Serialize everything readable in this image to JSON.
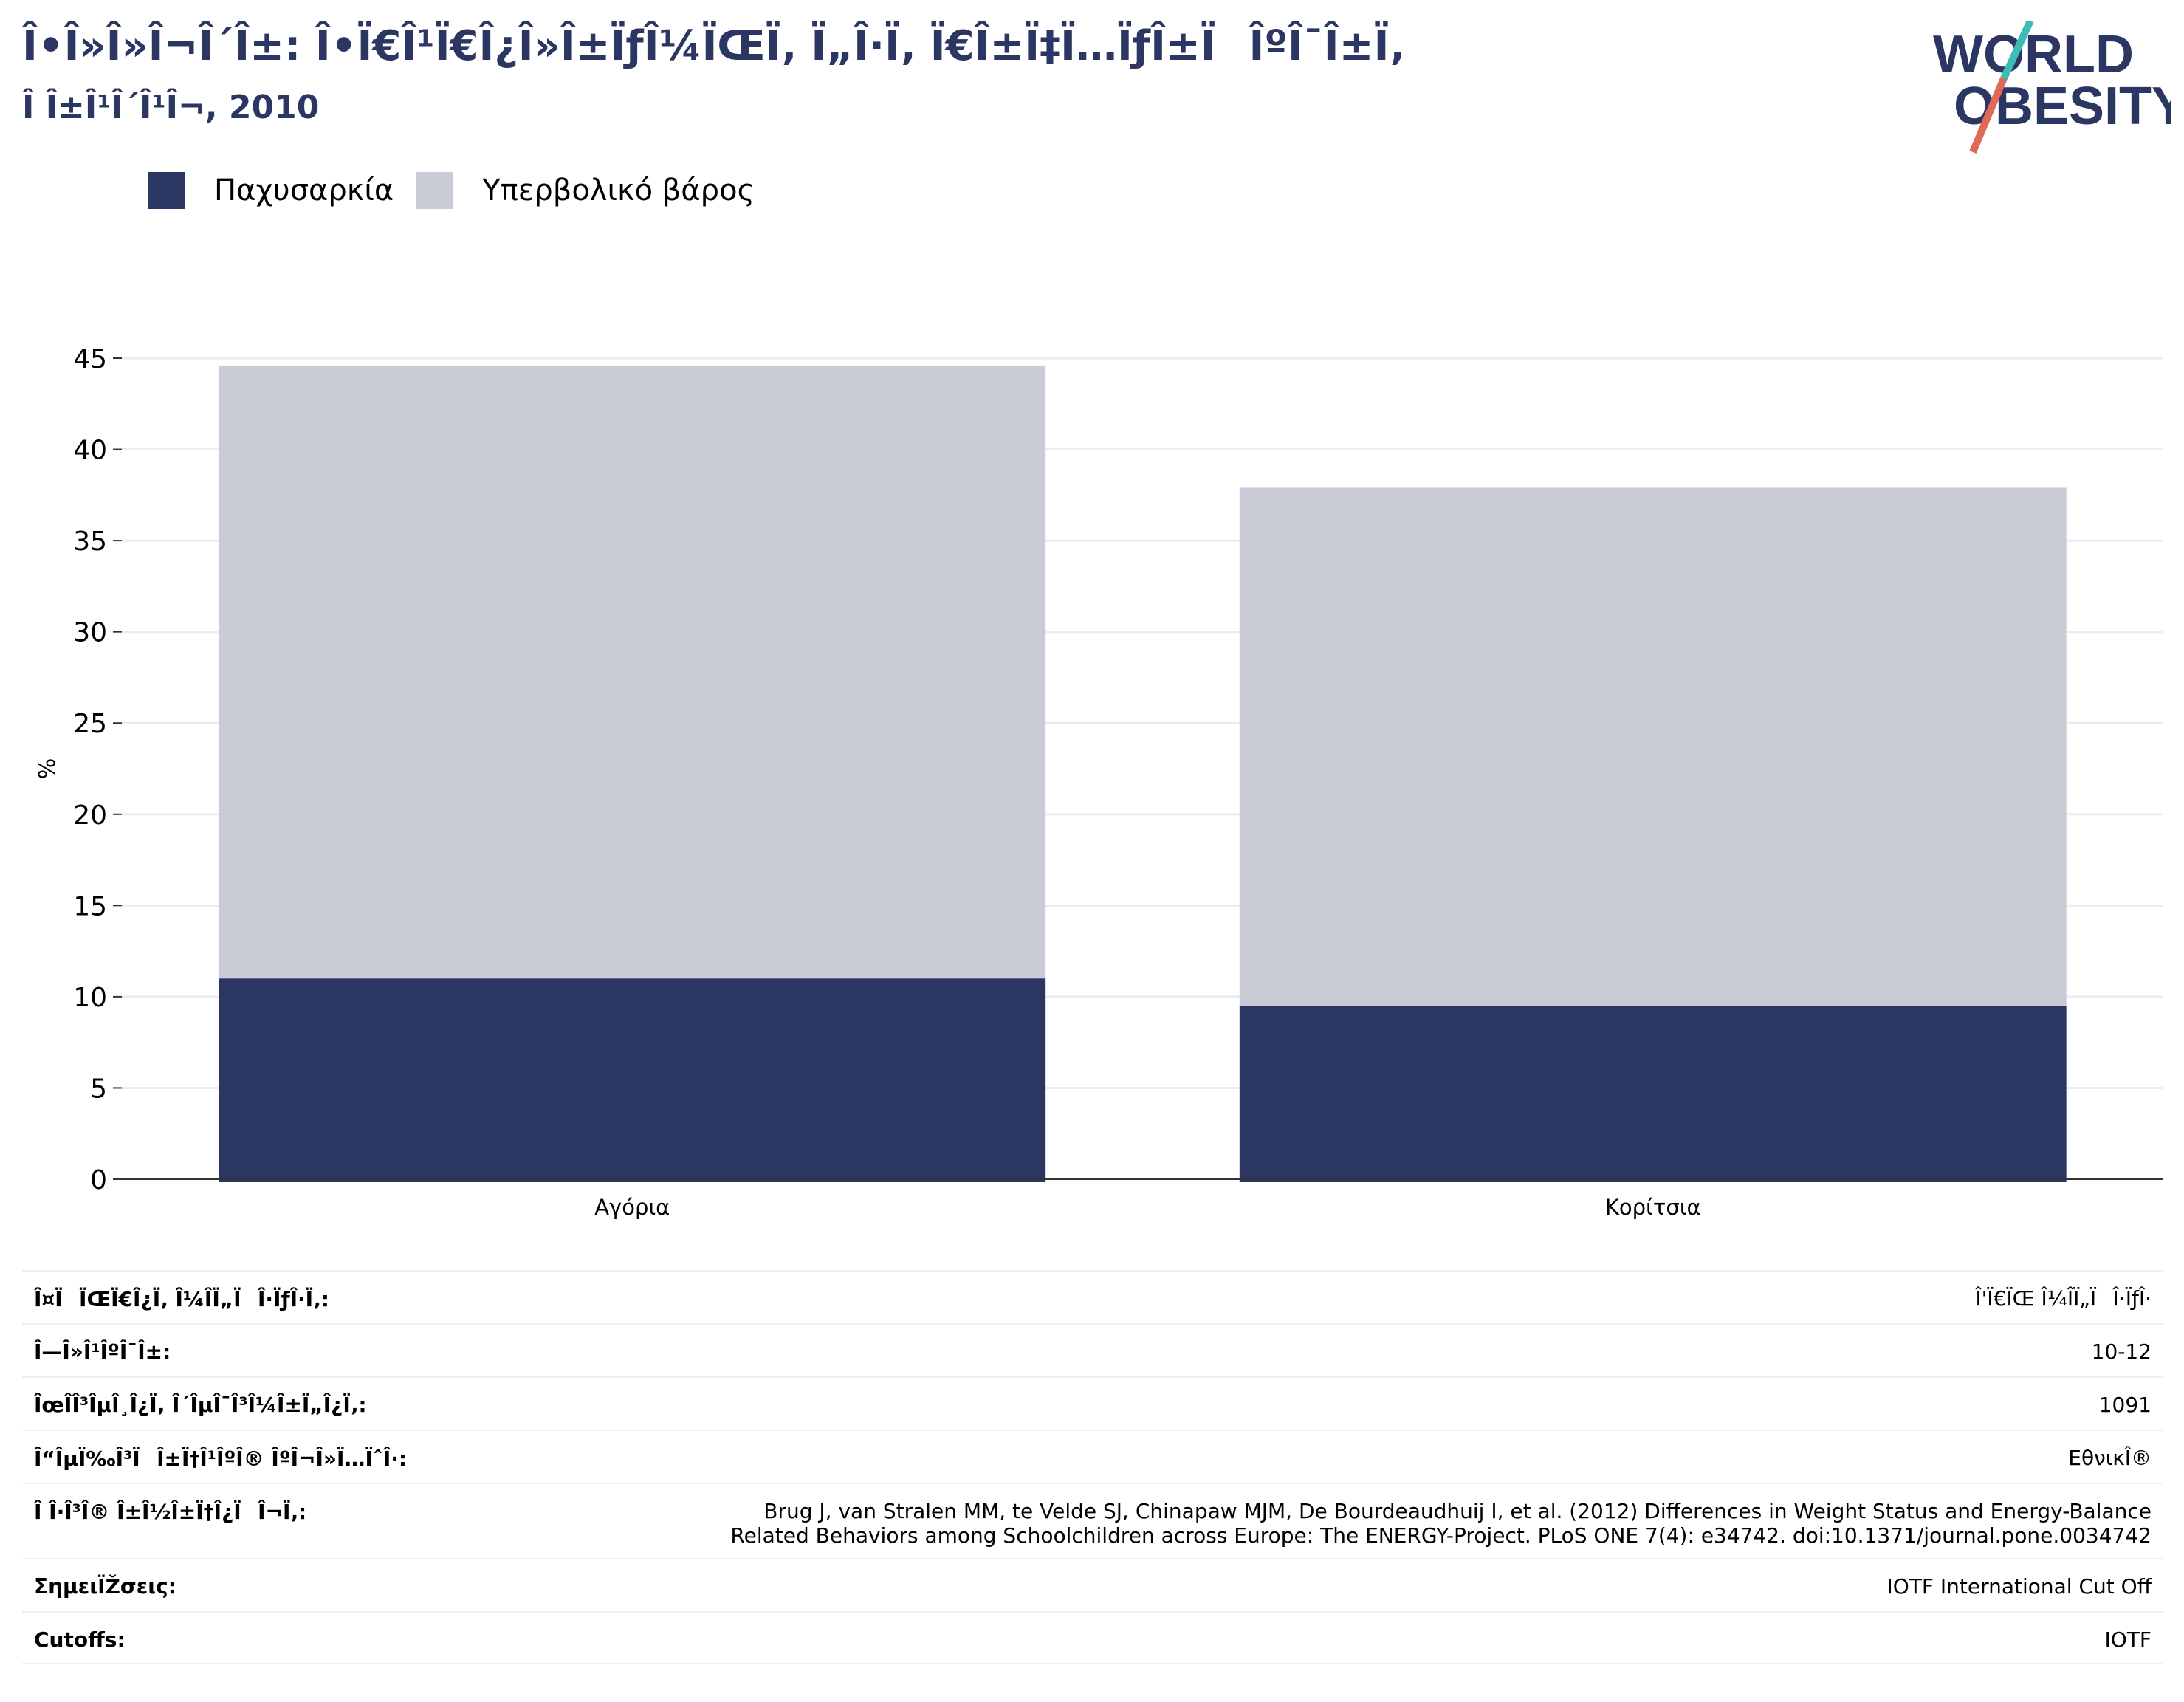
{
  "header": {
    "title": "Î•Î»Î»Î¬Î´Î±: Î•Ï€Î¹Ï€Î¿Î»Î±ÏƒÎ¼ÏŒÏ‚ Ï„Î·Ï‚ Ï€Î±Ï‡Ï…ÏƒÎ±ÏÎºÎ¯Î±Ï‚",
    "subtitle": "Î Î±Î¹Î´Î¹Î¬, 2010"
  },
  "logo": {
    "line1": "WORLD",
    "line2": "OBESITY",
    "color_text": "#2b3663",
    "color_slash_top": "#3dbcb5",
    "color_slash_bottom": "#e06a58"
  },
  "legend": [
    {
      "label": "Παχυσαρκία",
      "color": "#2b3663"
    },
    {
      "label": "Υπερβολικό βάρος",
      "color": "#c9cbd6"
    }
  ],
  "chart_data": {
    "type": "bar",
    "stacked": true,
    "categories": [
      "Αγόρια",
      "Κορίτσια"
    ],
    "series": [
      {
        "name": "Παχυσαρκία",
        "values": [
          11.0,
          9.5
        ],
        "color": "#2b3663"
      },
      {
        "name": "Υπερβολικό βάρος",
        "values": [
          33.6,
          28.4
        ],
        "color": "#c9cbd6"
      }
    ],
    "totals": [
      44.6,
      37.9
    ],
    "ylabel": "%",
    "ylim": [
      0,
      45
    ],
    "yticks": [
      0,
      5,
      10,
      15,
      20,
      25,
      30,
      35,
      40,
      45
    ],
    "grid": true,
    "legend_position": "top-left"
  },
  "info_table": [
    {
      "label": "Î¤ÏÏŒÏ€Î¿Ï‚ Î¼Î­Ï„ÏÎ·ÏƒÎ·Ï‚:",
      "value": [
        "Î'Ï€ÏŒ Î¼Î­Ï„ÏÎ·ÏƒÎ·"
      ]
    },
    {
      "label": "Î—Î»Î¹ÎºÎ¯Î±:",
      "value": [
        "10-12"
      ]
    },
    {
      "label": "ÎœÎ­Î³ÎµÎ¸Î¿Ï‚ Î´ÎµÎ¯Î³Î¼Î±Ï„Î¿Ï‚:",
      "value": [
        "1091"
      ]
    },
    {
      "label": "Î“ÎµÏ‰Î³ÏÎ±Ï†Î¹ÎºÎ® ÎºÎ¬Î»Ï…ÏˆÎ·:",
      "value": [
        "ΕθνικÎ®"
      ]
    },
    {
      "label": "Î Î·Î³Î® Î±Î½Î±Ï†Î¿ÏÎ¬Ï‚:",
      "value": [
        "Brug J, van Stralen MM, te Velde SJ, Chinapaw MJM, De Bourdeaudhuij I, et al. (2012) Differences in Weight Status and Energy-Balance",
        "Related Behaviors among Schoolchildren across Europe: The ENERGY-Project. PLoS ONE 7(4): e34742. doi:10.1371/journal.pone.0034742"
      ]
    },
    {
      "label": "ΣημειÏŽσεις:",
      "value": [
        "IOTF International Cut Off"
      ]
    },
    {
      "label": "Cutoffs:",
      "value": [
        "IOTF"
      ]
    }
  ]
}
